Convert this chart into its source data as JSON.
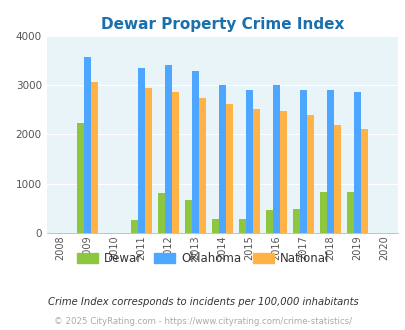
{
  "title": "Dewar Property Crime Index",
  "years": [
    2009,
    2011,
    2012,
    2013,
    2014,
    2015,
    2016,
    2017,
    2018,
    2019
  ],
  "dewar": [
    2230,
    260,
    800,
    660,
    270,
    270,
    470,
    480,
    820,
    820
  ],
  "oklahoma": [
    3580,
    3360,
    3420,
    3300,
    3010,
    2910,
    3010,
    2910,
    2910,
    2870
  ],
  "national": [
    3060,
    2940,
    2870,
    2740,
    2620,
    2520,
    2470,
    2400,
    2200,
    2120
  ],
  "bar_color_dewar": "#8dc63f",
  "bar_color_oklahoma": "#4da6ff",
  "bar_color_national": "#ffb347",
  "xlabel_years": [
    2008,
    2009,
    2010,
    2011,
    2012,
    2013,
    2014,
    2015,
    2016,
    2017,
    2018,
    2019,
    2020
  ],
  "ylim": [
    0,
    4000
  ],
  "yticks": [
    0,
    1000,
    2000,
    3000,
    4000
  ],
  "bg_color": "#e8f4f8",
  "title_color": "#1a6fad",
  "legend_labels": [
    "Dewar",
    "Oklahoma",
    "National"
  ],
  "note_text": "Crime Index corresponds to incidents per 100,000 inhabitants",
  "copyright_text": "© 2025 CityRating.com - https://www.cityrating.com/crime-statistics/",
  "note_color": "#333333",
  "copyright_color": "#aaaaaa"
}
